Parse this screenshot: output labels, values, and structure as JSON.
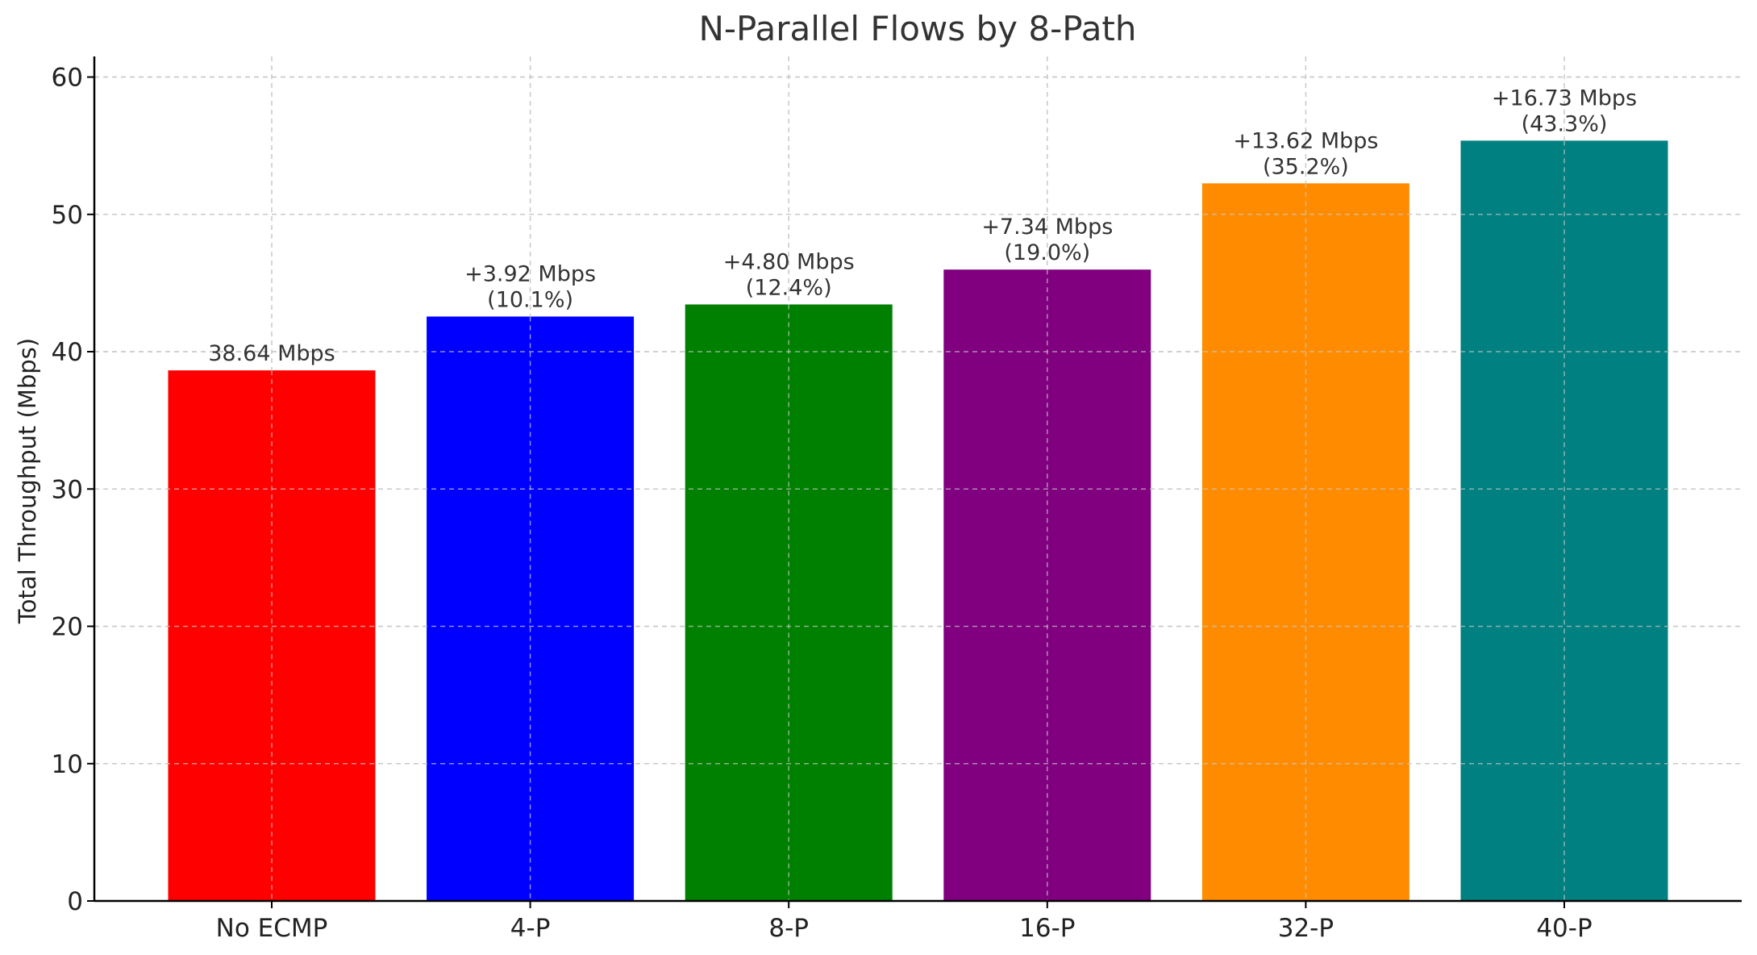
{
  "chart_data": {
    "type": "bar",
    "title": "N-Parallel Flows by 8-Path",
    "xlabel": "",
    "ylabel": "Total Throughput (Mbps)",
    "ylim": [
      0,
      61.5
    ],
    "yticks": [
      0,
      10,
      20,
      30,
      40,
      50,
      60
    ],
    "grid": true,
    "categories": [
      "No ECMP",
      "4-P",
      "8-P",
      "16-P",
      "32-P",
      "40-P"
    ],
    "values": [
      38.64,
      42.56,
      43.44,
      45.98,
      52.26,
      55.37
    ],
    "colors": [
      "#ff0000",
      "#0000ff",
      "#008000",
      "#800080",
      "#ff8c00",
      "#008080"
    ],
    "labels": [
      [
        "38.64 Mbps"
      ],
      [
        "+3.92 Mbps",
        "(10.1%)"
      ],
      [
        "+4.80 Mbps",
        "(12.4%)"
      ],
      [
        "+7.34 Mbps",
        "(19.0%)"
      ],
      [
        "+13.62 Mbps",
        "(35.2%)"
      ],
      [
        "+16.73 Mbps",
        "(43.3%)"
      ]
    ]
  }
}
